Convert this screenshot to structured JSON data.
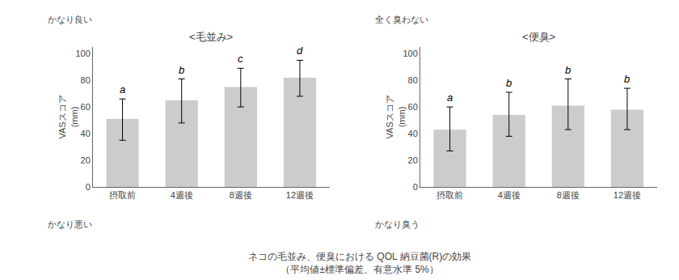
{
  "chart_data": [
    {
      "type": "bar",
      "title": "<毛並み>",
      "ylabel": "VASスコア\n(mm)",
      "top_label": "かなり良い",
      "bottom_label": "かなり悪い",
      "categories": [
        "摂取前",
        "4週後",
        "8週後",
        "12週後"
      ],
      "values": [
        51,
        65,
        75,
        82
      ],
      "error_upper": [
        15,
        16,
        14,
        13
      ],
      "error_lower": [
        16,
        17,
        15,
        14
      ],
      "letters": [
        "a",
        "b",
        "c",
        "d"
      ],
      "color": "#cccccc",
      "ylim": [
        0,
        105
      ],
      "yticks": [
        0,
        20,
        40,
        60,
        80,
        100
      ],
      "grid": false
    },
    {
      "type": "bar",
      "title": "<便臭>",
      "ylabel": "VASスコア\n(mm)",
      "top_label": "全く臭わない",
      "bottom_label": "かなり臭う",
      "categories": [
        "摂取前",
        "4週後",
        "8週後",
        "12週後"
      ],
      "values": [
        43,
        54,
        61,
        58
      ],
      "error_upper": [
        17,
        17,
        20,
        16
      ],
      "error_lower": [
        16,
        16,
        18,
        15
      ],
      "letters": [
        "a",
        "b",
        "b",
        "b"
      ],
      "color": "#cccccc",
      "ylim": [
        0,
        105
      ],
      "yticks": [
        0,
        20,
        40,
        60,
        80,
        100
      ],
      "grid": false
    }
  ],
  "caption": [
    "ネコの毛並み、便臭における QOL 納豆菌(R)の効果",
    "（平均値±標準偏差、有意水準 5%）"
  ]
}
